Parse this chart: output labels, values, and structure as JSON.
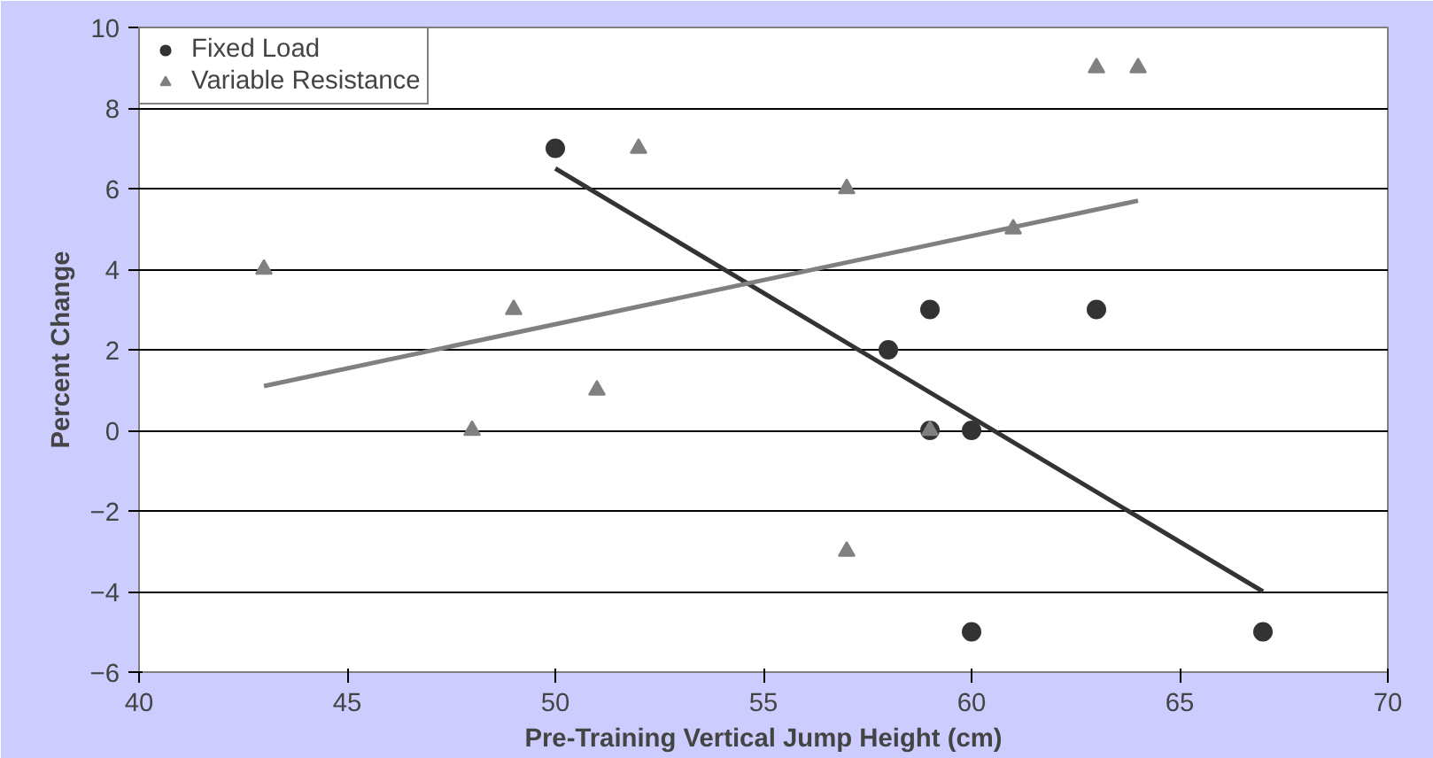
{
  "chart_data": {
    "type": "scatter",
    "xlabel": "Pre-Training Vertical Jump Height (cm)",
    "ylabel": "Percent Change",
    "xlim": [
      40,
      70
    ],
    "xticks": [
      40,
      45,
      50,
      55,
      60,
      65,
      70
    ],
    "ylim": [
      -6,
      10
    ],
    "yticks": [
      -6,
      -4,
      -2,
      0,
      2,
      4,
      6,
      8,
      10
    ],
    "grid": "y",
    "legend": "top left",
    "series": [
      {
        "name": "Fixed Load",
        "marker": "circle",
        "color": "#333333",
        "x": [
          50,
          58,
          59,
          59,
          60,
          63,
          60,
          67
        ],
        "values": [
          7,
          2,
          3,
          0,
          0,
          3,
          -5,
          -5
        ]
      },
      {
        "name": "Variable Resistance",
        "marker": "triangle",
        "color": "#808080",
        "x": [
          43,
          48,
          49,
          51,
          52,
          57,
          57,
          59,
          61,
          63,
          64
        ],
        "values": [
          4,
          0,
          3,
          1,
          7,
          6,
          -3,
          0,
          5,
          9,
          9
        ]
      },
      {
        "type": "line",
        "marker": "none",
        "color": "#333333",
        "x": [
          50,
          67
        ],
        "values": [
          6.5,
          -4.0
        ]
      },
      {
        "type": "line",
        "marker": "none",
        "color": "#808080",
        "x": [
          43,
          64
        ],
        "values": [
          1.1,
          5.7
        ]
      }
    ]
  }
}
